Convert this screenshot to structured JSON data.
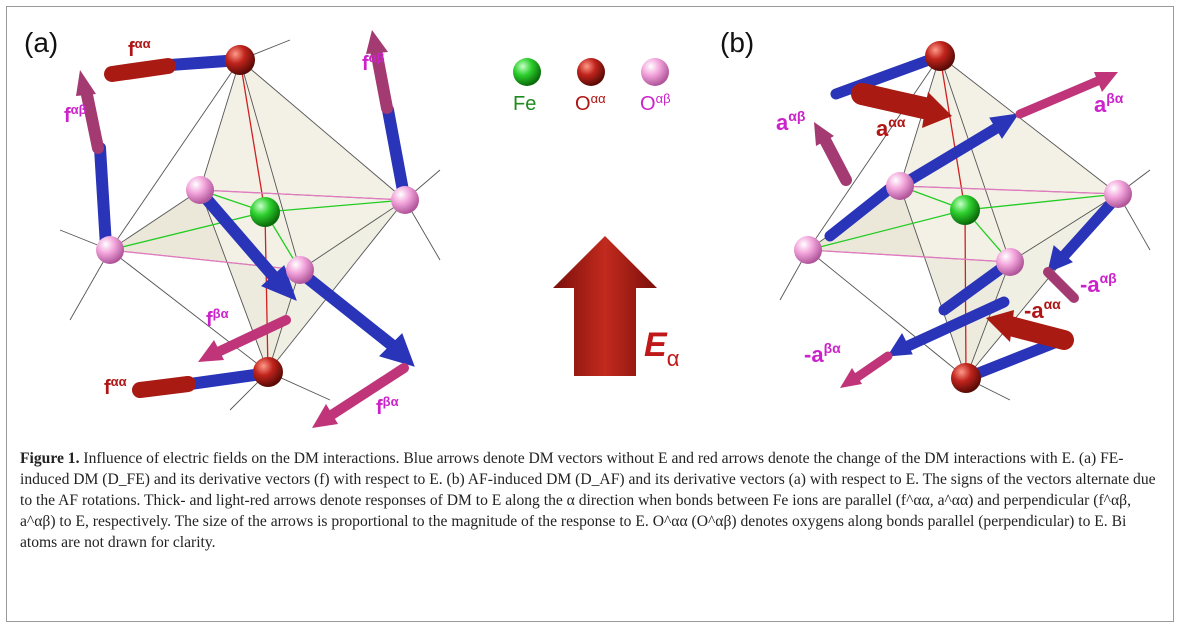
{
  "panels": {
    "a_label": "(a)",
    "b_label": "(b)"
  },
  "legend": {
    "fe": "Fe",
    "o_aa": "O",
    "o_aa_sup": "αα",
    "o_ab": "O",
    "o_ab_sup": "αβ"
  },
  "field": {
    "symbol": "E",
    "subscript": "α"
  },
  "vectors": {
    "f": "f",
    "a": "a",
    "neg_a": "-a",
    "aa": "αα",
    "ab": "αβ",
    "ba": "βα"
  },
  "caption": {
    "label": "Figure 1.",
    "text": " Influence of electric fields on the DM interactions. Blue arrows denote DM vectors without E and red arrows denote the change of the DM interactions with E. (a) FE-induced DM (D_FE) and its derivative vectors (f) with respect to E. (b) AF-induced DM (D_AF) and its derivative vectors (a) with respect to E. The signs of the vectors alternate due to the AF rotations. Thick- and light-red arrows denote responses of DM to E along the α direction when bonds between Fe ions are parallel (f^αα, a^αα) and perpendicular (f^αβ, a^αβ) to E, respectively. The size of the arrows is proportional to the magnitude of the response to E. O^αα (O^αβ) denotes oxygens along bonds parallel (perpendicular) to E. Bi atoms are not drawn for clarity."
  },
  "colors": {
    "blue_arrow": "#2a34b8",
    "dark_red_arrow": "#a81a12",
    "magenta_arrow": "#c0347a",
    "label_red": "#b01515",
    "label_magenta": "#cc22cc",
    "fe_green": "#22bb22"
  }
}
